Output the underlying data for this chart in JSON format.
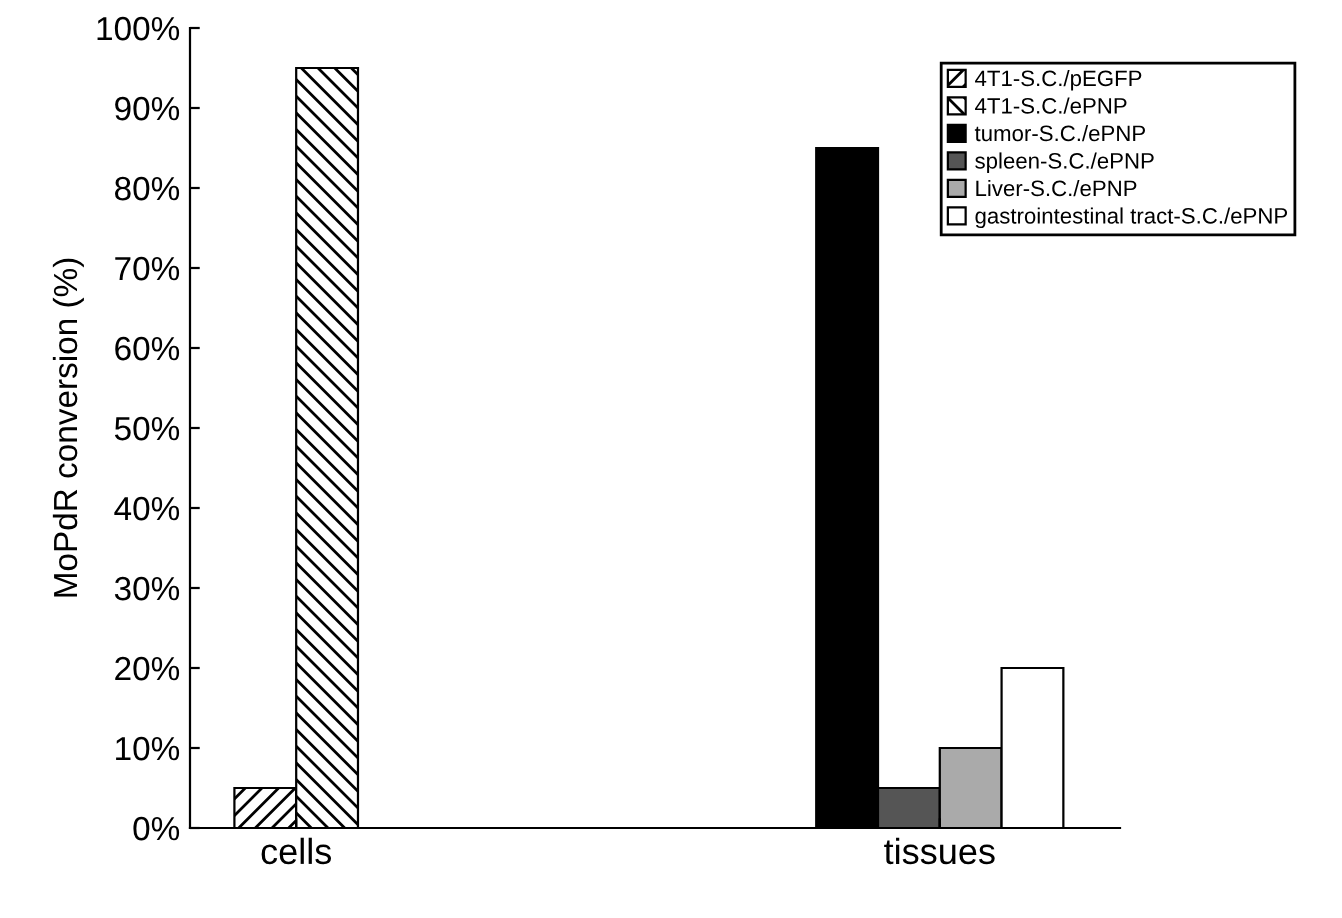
{
  "chart_data": {
    "type": "bar",
    "ylabel": "MoPdR conversion (%)",
    "categories": [
      "cells",
      "tissues"
    ],
    "series": [
      {
        "name": "4T1-S.C./pEGFP",
        "color": "#000000",
        "values": [
          5,
          null
        ]
      },
      {
        "name": "4T1-S.C./ePNP",
        "color": "#000000",
        "values": [
          95,
          null
        ]
      },
      {
        "name": "tumor-S.C./ePNP",
        "color": "#000000",
        "values": [
          null,
          85
        ]
      },
      {
        "name": "spleen-S.C./ePNP",
        "color": "#555555",
        "values": [
          null,
          5
        ]
      },
      {
        "name": "Liver-S.C./ePNP",
        "color": "#aaaaaa",
        "values": [
          null,
          10
        ]
      },
      {
        "name": "gastrointestinal tract-S.C./ePNP",
        "color": "#ffffff",
        "values": [
          null,
          20
        ]
      }
    ],
    "ylim": [
      0,
      100
    ],
    "yticks": [
      {
        "value": 0,
        "label": "0%"
      },
      {
        "value": 10,
        "label": "10%"
      },
      {
        "value": 20,
        "label": "20%"
      },
      {
        "value": 30,
        "label": "30%"
      },
      {
        "value": 40,
        "label": "40%"
      },
      {
        "value": 50,
        "label": "50%"
      },
      {
        "value": 60,
        "label": "60%"
      },
      {
        "value": 70,
        "label": "70%"
      },
      {
        "value": 80,
        "label": "80%"
      },
      {
        "value": 90,
        "label": "90%"
      },
      {
        "value": 100,
        "label": "100%"
      }
    ],
    "grid": false,
    "legend": "top right"
  }
}
